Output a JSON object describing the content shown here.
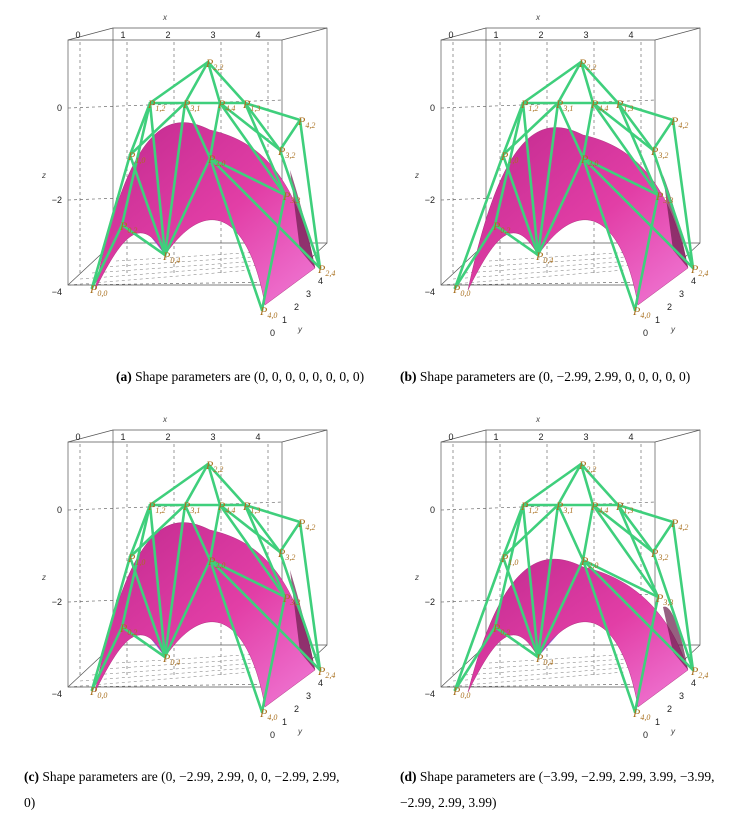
{
  "axes": {
    "x_label": "x",
    "y_label": "y",
    "z_label": "z",
    "x_ticks": [
      "0",
      "1",
      "2",
      "3",
      "4"
    ],
    "y_ticks": [
      "0",
      "1",
      "2",
      "3",
      "4"
    ],
    "z_ticks": [
      "0",
      "−2",
      "−4"
    ]
  },
  "point_labels": [
    "P0,0",
    "P0,2",
    "P0,4",
    "P1,0",
    "P1,2",
    "P1,3",
    "P2,0",
    "P2,2",
    "P2,4",
    "P3,1",
    "P3,2",
    "P3,3",
    "P4,0",
    "P4,2",
    "P4,4"
  ],
  "colors": {
    "surface_top": "#e23ea6",
    "surface_under": "#8a55d8",
    "net": "#3fcf7c",
    "box": "#555555",
    "label": "#a9701f"
  },
  "panels": [
    {
      "tag": "(a)",
      "text": "Shape parameters are (0, 0, 0, 0, 0, 0, 0, 0)"
    },
    {
      "tag": "(b)",
      "text": "Shape parameters are (0, −2.99, 2.99, 0, 0, 0, 0, 0)"
    },
    {
      "tag": "(c)",
      "text": "Shape parameters are (0, −2.99, 2.99, 0, 0, −2.99, 2.99, 0)"
    },
    {
      "tag": "(d)",
      "text": "Shape parameters are (−3.99, −2.99, 2.99, 3.99, −3.99, −2.99, 2.99, 3.99)"
    }
  ]
}
